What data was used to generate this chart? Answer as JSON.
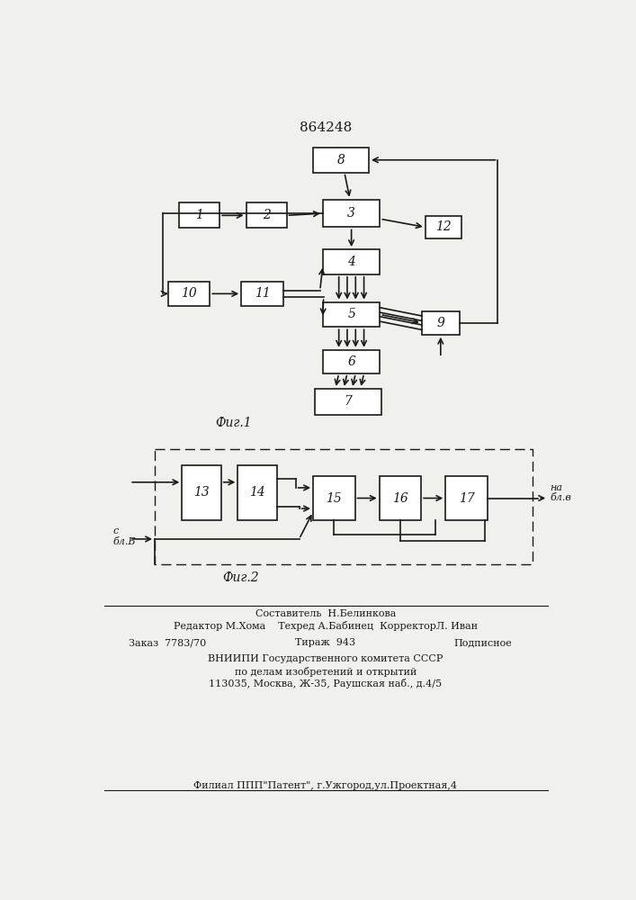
{
  "title": "864248",
  "fig1_label": "Фиг.1",
  "fig2_label": "Фиг.2",
  "bg_color": "#f0f0ec",
  "box_color": "#ffffff",
  "line_color": "#1a1a1a"
}
